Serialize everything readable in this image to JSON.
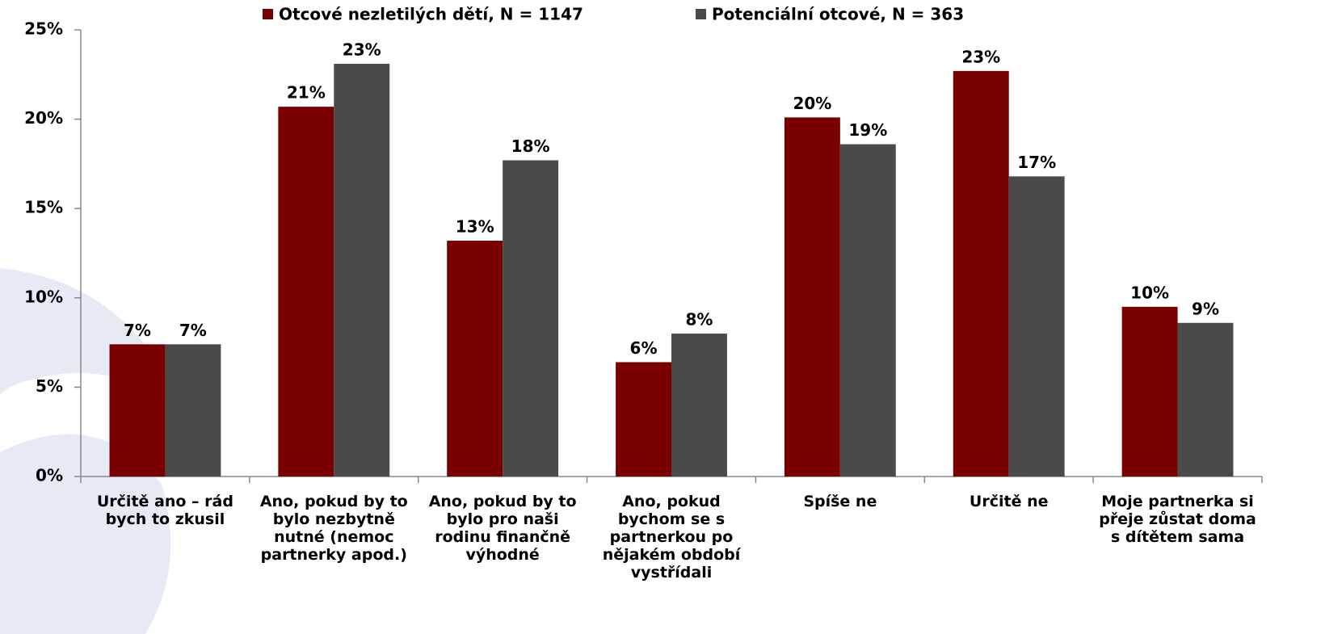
{
  "chart_data": {
    "type": "bar",
    "categories": [
      "Určitě ano – rád bych to zkusil",
      "Ano, pokud by to bylo nezbytně nutné (nemoc partnerky apod.)",
      "Ano, pokud by to bylo pro naši rodinu finančně výhodné",
      "Ano, pokud bychom se s partnerkou po nějakém období vystřídali",
      "Spíše ne",
      "Určitě ne",
      "Moje partnerka si přeje zůstat doma s dítětem sama"
    ],
    "series": [
      {
        "name": "Otcové nezletilých dětí, N = 1147",
        "color": "#7a0000",
        "values": [
          7.4,
          20.7,
          13.2,
          6.4,
          20.1,
          22.7,
          9.5
        ],
        "value_labels": [
          "7%",
          "21%",
          "13%",
          "6%",
          "20%",
          "23%",
          "10%"
        ]
      },
      {
        "name": "Potenciální otcové, N = 363",
        "color": "#4a4a4a",
        "values": [
          7.4,
          23.1,
          17.7,
          8.0,
          18.6,
          16.8,
          8.6
        ],
        "value_labels": [
          "7%",
          "23%",
          "18%",
          "8%",
          "19%",
          "17%",
          "9%"
        ]
      }
    ],
    "ylim": [
      0,
      25
    ],
    "yticks": [
      {
        "value": 0,
        "label": "0%"
      },
      {
        "value": 5,
        "label": "5%"
      },
      {
        "value": 10,
        "label": "10%"
      },
      {
        "value": 15,
        "label": "15%"
      },
      {
        "value": 20,
        "label": "20%"
      },
      {
        "value": 25,
        "label": "25%"
      }
    ],
    "legend": "top"
  }
}
